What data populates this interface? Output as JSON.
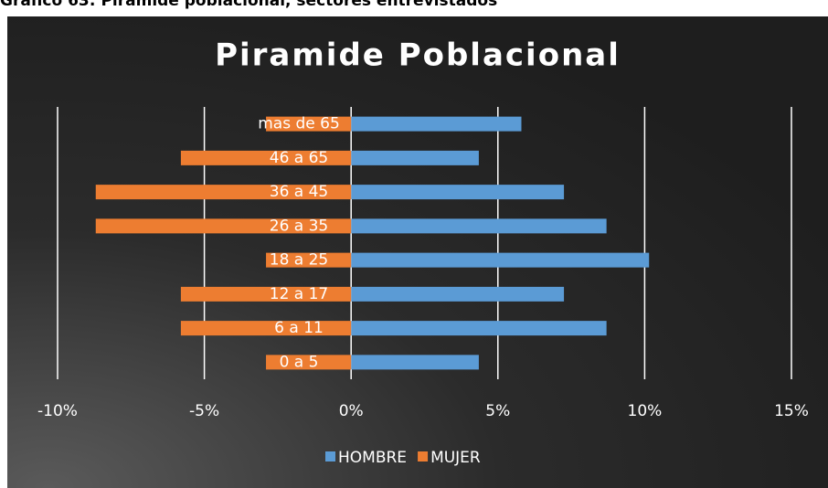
{
  "caption": "Gráfico 63: Pirámide poblacional, sectores entrevistados",
  "chart_data": {
    "type": "bar",
    "orientation": "horizontal",
    "stacked": true,
    "title": "Piramide Poblacional",
    "categories": [
      "mas de 65",
      "46 a 65",
      "36 a 45",
      "26 a 35",
      "18 a 25",
      "12 a 17",
      "6 a 11",
      "0 a 5"
    ],
    "series": [
      {
        "name": "HOMBRE",
        "color": "#5b9bd5",
        "values": [
          5.8,
          4.35,
          7.25,
          8.7,
          10.15,
          7.25,
          8.7,
          4.35
        ]
      },
      {
        "name": "MUJER",
        "color": "#ed7d31",
        "values": [
          -2.9,
          -5.8,
          -8.7,
          -8.7,
          -2.9,
          -5.8,
          -5.8,
          -2.9
        ]
      }
    ],
    "xlim": [
      -10,
      15
    ],
    "xticks": [
      {
        "value": -10,
        "label": "-10%"
      },
      {
        "value": -5,
        "label": "-5%"
      },
      {
        "value": 0,
        "label": "0%"
      },
      {
        "value": 5,
        "label": "5%"
      },
      {
        "value": 10,
        "label": "10%"
      },
      {
        "value": 15,
        "label": "15%"
      }
    ],
    "grid": true,
    "legend": "bottom"
  }
}
